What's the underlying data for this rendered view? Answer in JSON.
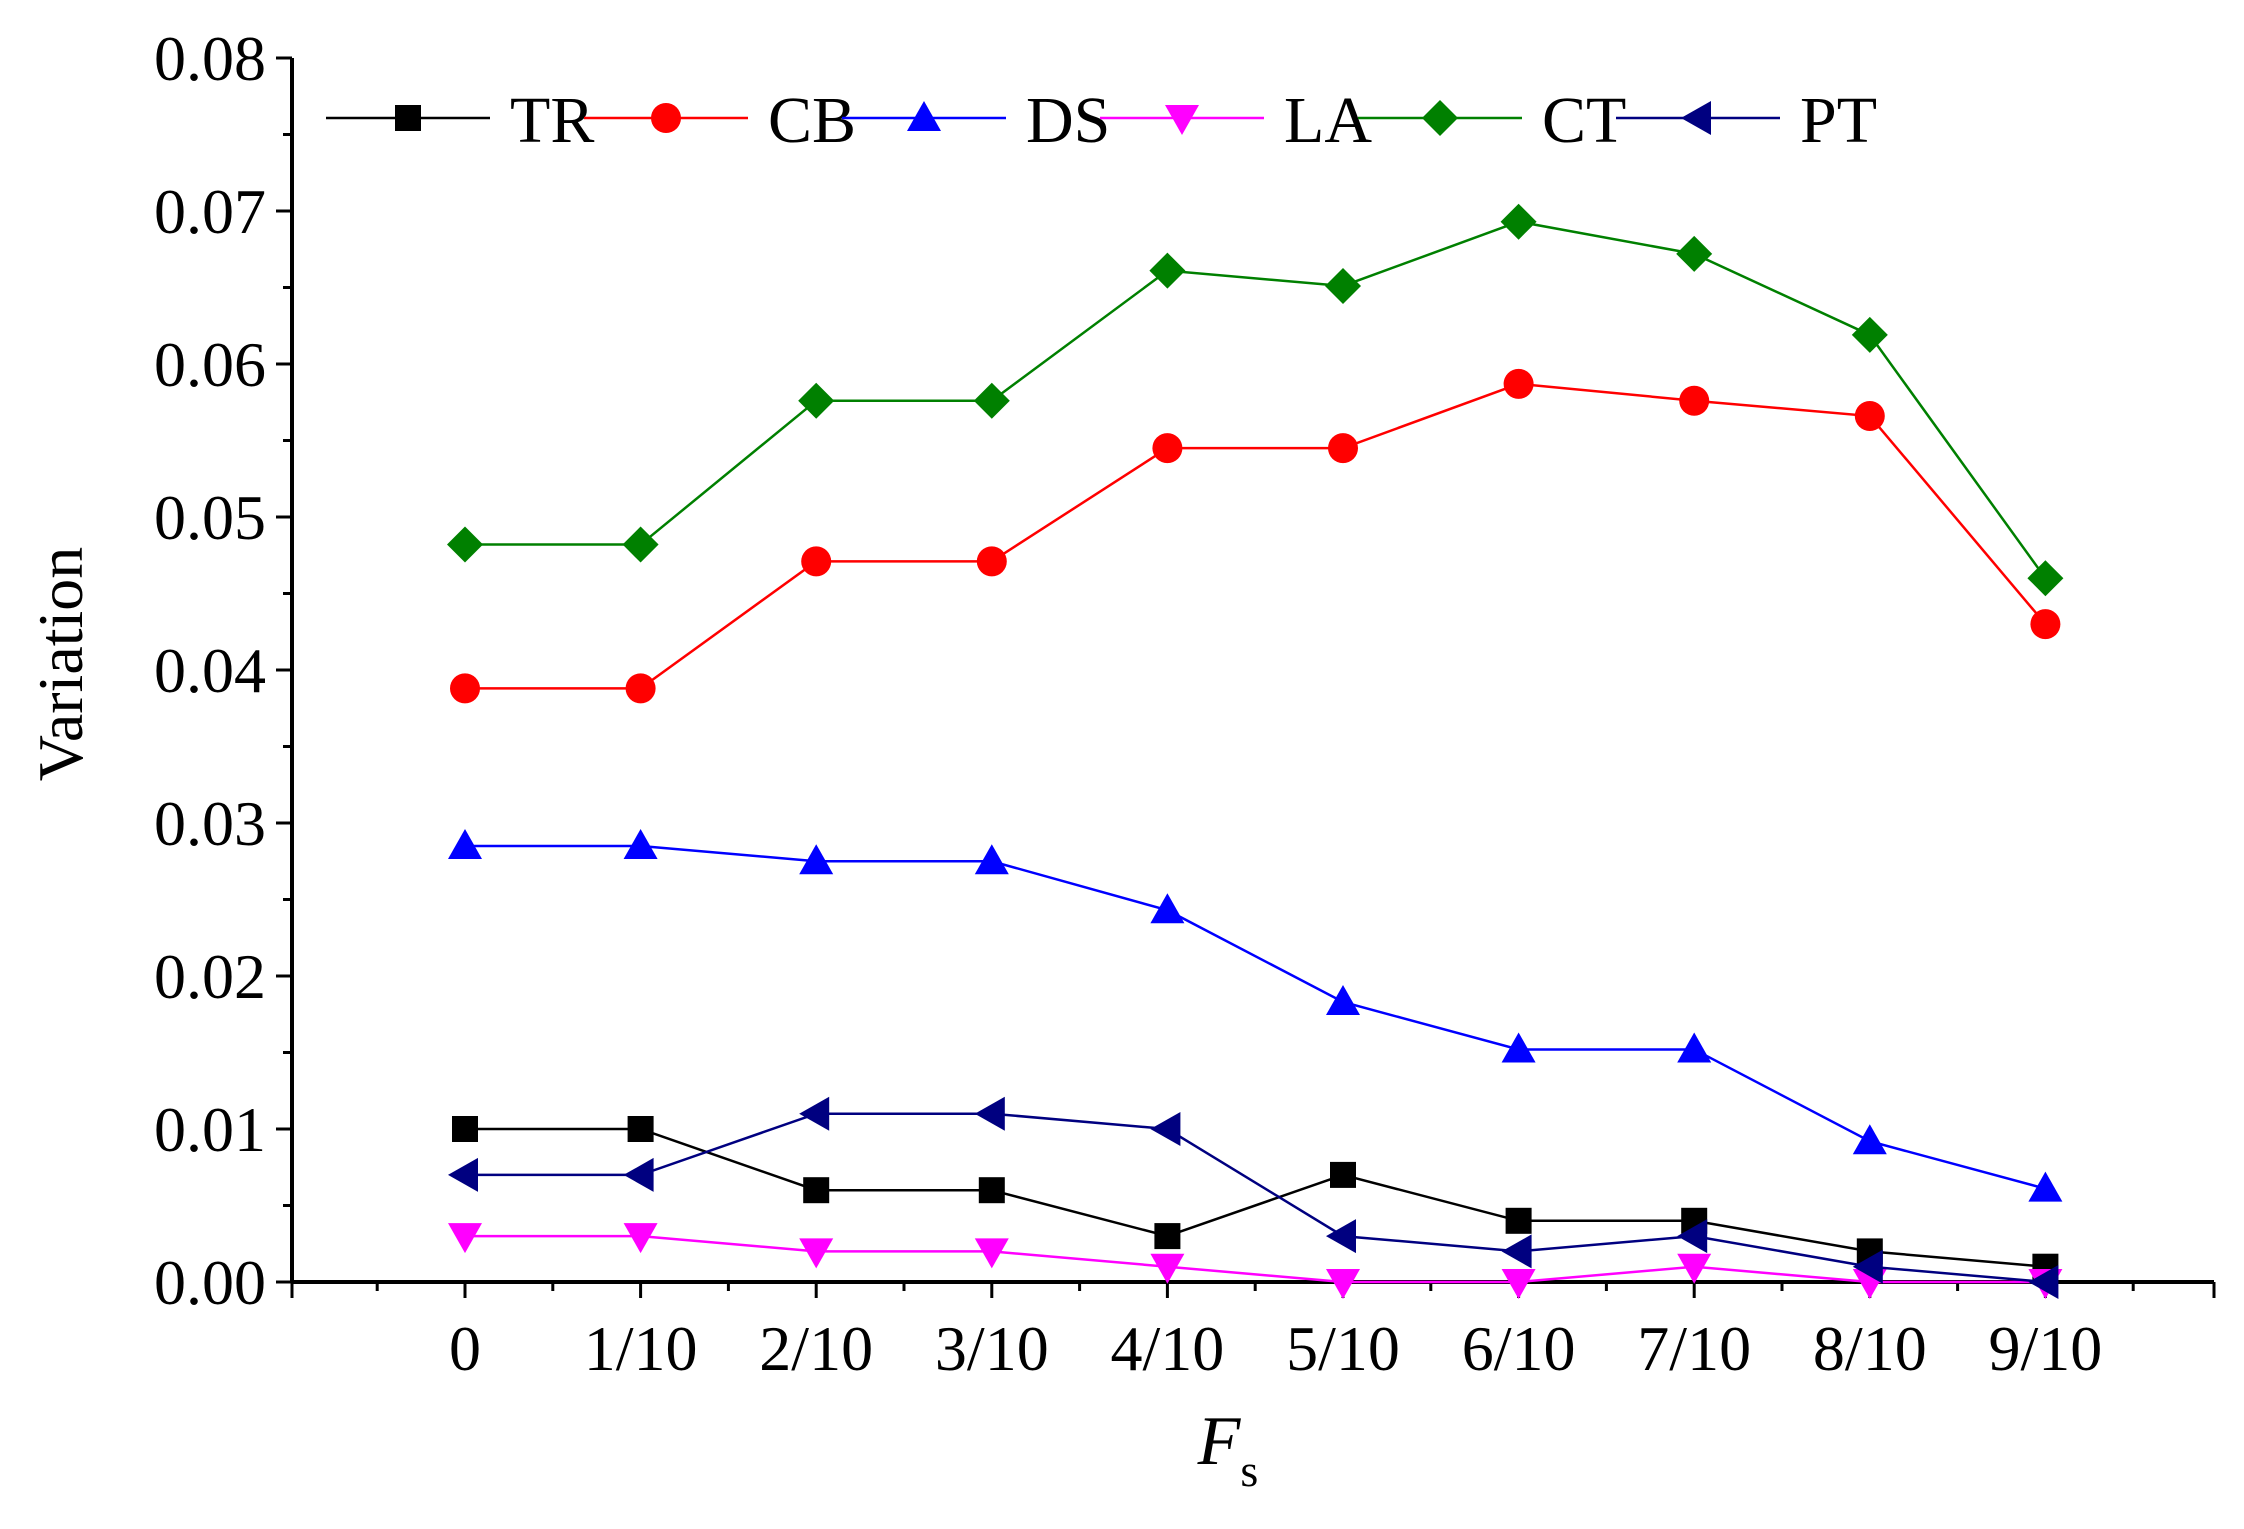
{
  "chart_data": {
    "type": "line",
    "title": "",
    "xlabel": "F",
    "xlabel_sub": "s",
    "ylabel": "Variation",
    "categories": [
      "0",
      "1/10",
      "2/10",
      "3/10",
      "4/10",
      "5/10",
      "6/10",
      "7/10",
      "8/10",
      "9/10"
    ],
    "ylim": [
      0,
      0.08
    ],
    "yticks": [
      "0.00",
      "0.01",
      "0.02",
      "0.03",
      "0.04",
      "0.05",
      "0.06",
      "0.07",
      "0.08"
    ],
    "legend_position": "top",
    "grid": false,
    "series": [
      {
        "name": "TR",
        "color": "#000000",
        "marker": "square",
        "values": [
          0.01,
          0.01,
          0.006,
          0.006,
          0.003,
          0.007,
          0.004,
          0.004,
          0.002,
          0.001
        ]
      },
      {
        "name": "CB",
        "color": "#ff0000",
        "marker": "circle",
        "values": [
          0.0388,
          0.0388,
          0.0471,
          0.0471,
          0.0545,
          0.0545,
          0.0587,
          0.0576,
          0.0566,
          0.043
        ]
      },
      {
        "name": "DS",
        "color": "#0000ff",
        "marker": "triangle-up",
        "values": [
          0.0285,
          0.0285,
          0.0275,
          0.0275,
          0.0243,
          0.0183,
          0.0152,
          0.0152,
          0.0092,
          0.0061
        ]
      },
      {
        "name": "LA",
        "color": "#ff00ff",
        "marker": "triangle-down",
        "values": [
          0.003,
          0.003,
          0.002,
          0.002,
          0.001,
          0.0,
          0.0,
          0.001,
          0.0,
          0.0
        ]
      },
      {
        "name": "CT",
        "color": "#008000",
        "marker": "diamond",
        "values": [
          0.0482,
          0.0482,
          0.0576,
          0.0576,
          0.0661,
          0.0651,
          0.0693,
          0.0672,
          0.0619,
          0.046
        ]
      },
      {
        "name": "PT",
        "color": "#000080",
        "marker": "triangle-left",
        "values": [
          0.007,
          0.007,
          0.011,
          0.011,
          0.01,
          0.003,
          0.002,
          0.003,
          0.001,
          0.0
        ]
      }
    ]
  }
}
